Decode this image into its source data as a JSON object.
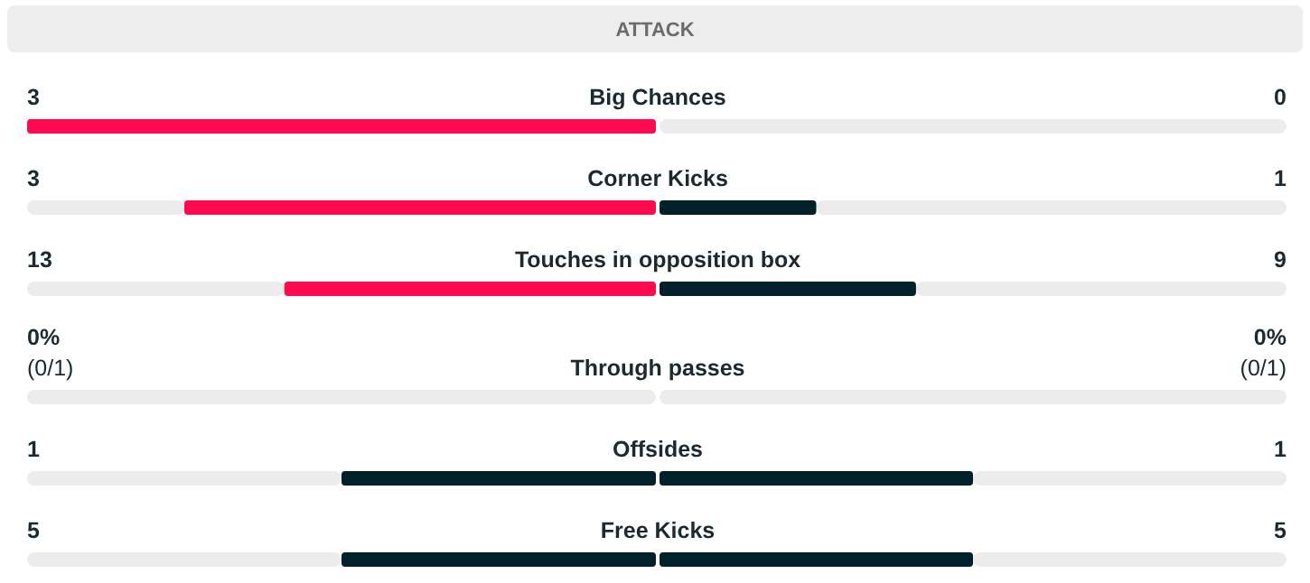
{
  "chart_data": {
    "type": "other",
    "title": "ATTACK",
    "categories": [
      "Big Chances",
      "Corner Kicks",
      "Touches in opposition box",
      "Through passes",
      "Offsides",
      "Free Kicks"
    ],
    "series": [
      {
        "values": [
          3,
          3,
          13,
          0,
          1,
          5
        ],
        "colors": [
          "#ff0a4f",
          "#ff0a4f",
          "#ff0a4f",
          "#ff0a4f",
          "#00202a",
          "#00202a"
        ],
        "value_labels": [
          "3",
          "3",
          "13",
          "0%\n(0/1)",
          "1",
          "5"
        ]
      },
      {
        "values": [
          0,
          1,
          9,
          0,
          1,
          5
        ],
        "colors": [
          "#00202a",
          "#00202a",
          "#00202a",
          "#00202a",
          "#00202a",
          "#00202a"
        ],
        "value_labels": [
          "0",
          "1",
          "9",
          "0%\n(0/1)",
          "1",
          "5"
        ]
      }
    ]
  }
}
